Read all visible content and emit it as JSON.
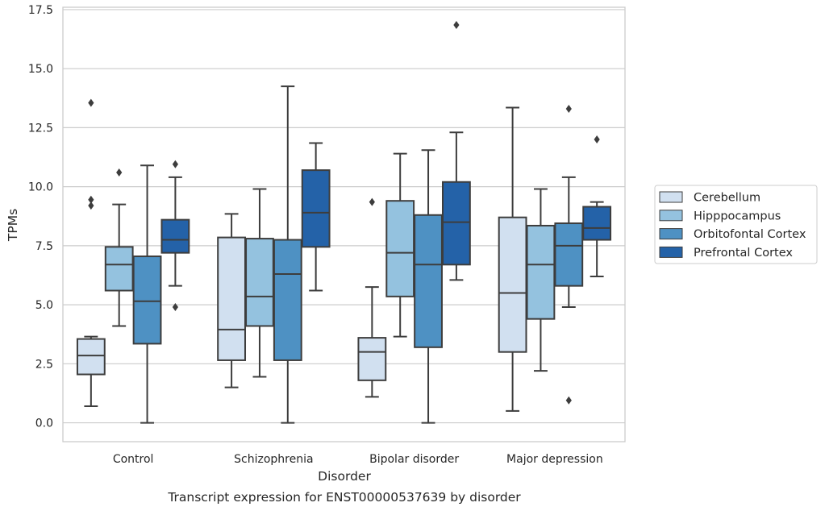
{
  "chart_data": {
    "type": "box",
    "title": "",
    "caption": "Transcript expression for ENST00000537639 by disorder",
    "xlabel": "Disorder",
    "ylabel": "TPMs",
    "ylim": [
      -0.8,
      17.6
    ],
    "yticks": [
      0.0,
      2.5,
      5.0,
      7.5,
      10.0,
      12.5,
      15.0,
      17.5
    ],
    "ytick_labels": [
      "0.0",
      "2.5",
      "5.0",
      "7.5",
      "10.0",
      "12.5",
      "15.0",
      "17.5"
    ],
    "grid": true,
    "legend_position": "right",
    "categories": [
      "Control",
      "Schizophrenia",
      "Bipolar disorder",
      "Major depression"
    ],
    "series": [
      {
        "name": "Cerebellum",
        "color": "#d1e0f0",
        "boxes": [
          {
            "whislo": 0.7,
            "q1": 2.05,
            "med": 2.85,
            "q3": 3.55,
            "whishi": 3.65,
            "fliers": [
              13.55,
              9.45,
              9.2
            ]
          },
          {
            "whislo": 1.5,
            "q1": 2.65,
            "med": 3.95,
            "q3": 7.85,
            "whishi": 8.85,
            "fliers": []
          },
          {
            "whislo": 1.1,
            "q1": 1.8,
            "med": 3.0,
            "q3": 3.6,
            "whishi": 5.75,
            "fliers": [
              9.35
            ]
          },
          {
            "whislo": 0.5,
            "q1": 3.0,
            "med": 5.5,
            "q3": 8.7,
            "whishi": 13.35,
            "fliers": []
          }
        ]
      },
      {
        "name": "Hipppocampus",
        "color": "#94c2df",
        "boxes": [
          {
            "whislo": 4.1,
            "q1": 5.6,
            "med": 6.7,
            "q3": 7.45,
            "whishi": 9.25,
            "fliers": [
              10.6
            ]
          },
          {
            "whislo": 1.95,
            "q1": 4.1,
            "med": 5.35,
            "q3": 7.8,
            "whishi": 9.9,
            "fliers": []
          },
          {
            "whislo": 3.65,
            "q1": 5.35,
            "med": 7.2,
            "q3": 9.4,
            "whishi": 11.4,
            "fliers": []
          },
          {
            "whislo": 2.2,
            "q1": 4.4,
            "med": 6.7,
            "q3": 8.35,
            "whishi": 9.9,
            "fliers": []
          }
        ]
      },
      {
        "name": "Orbitofontal Cortex",
        "color": "#4e91c3",
        "boxes": [
          {
            "whislo": 0.0,
            "q1": 3.35,
            "med": 5.15,
            "q3": 7.05,
            "whishi": 10.9,
            "fliers": []
          },
          {
            "whislo": 0.0,
            "q1": 2.65,
            "med": 6.3,
            "q3": 7.75,
            "whishi": 14.25,
            "fliers": []
          },
          {
            "whislo": 0.0,
            "q1": 3.2,
            "med": 6.7,
            "q3": 8.8,
            "whishi": 11.55,
            "fliers": []
          },
          {
            "whislo": 4.9,
            "q1": 5.8,
            "med": 7.5,
            "q3": 8.45,
            "whishi": 10.4,
            "fliers": [
              13.3,
              0.95
            ]
          }
        ]
      },
      {
        "name": "Prefrontal Cortex",
        "color": "#2462a8",
        "boxes": [
          {
            "whislo": 5.8,
            "q1": 7.2,
            "med": 7.75,
            "q3": 8.6,
            "whishi": 10.4,
            "fliers": [
              10.95,
              4.9
            ]
          },
          {
            "whislo": 5.6,
            "q1": 7.45,
            "med": 8.9,
            "q3": 10.7,
            "whishi": 11.85,
            "fliers": []
          },
          {
            "whislo": 6.05,
            "q1": 6.7,
            "med": 8.5,
            "q3": 10.2,
            "whishi": 12.3,
            "fliers": [
              16.85
            ]
          },
          {
            "whislo": 6.2,
            "q1": 7.75,
            "med": 8.25,
            "q3": 9.15,
            "whishi": 9.35,
            "fliers": [
              12.0
            ]
          }
        ]
      }
    ]
  }
}
